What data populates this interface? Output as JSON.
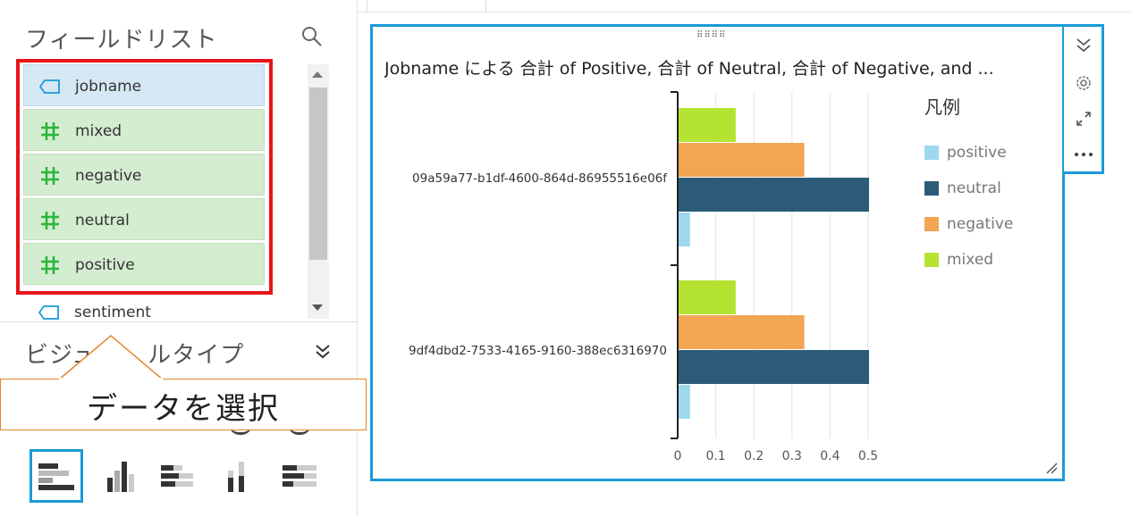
{
  "field_list": {
    "title": "フィールドリスト",
    "search_icon": "search-icon",
    "items": [
      {
        "label": "jobname",
        "kind": "dimension",
        "icon": "dimension-tag-icon"
      },
      {
        "label": "mixed",
        "kind": "measure",
        "icon": "hash-icon"
      },
      {
        "label": "negative",
        "kind": "measure",
        "icon": "hash-icon"
      },
      {
        "label": "neutral",
        "kind": "measure",
        "icon": "hash-icon"
      },
      {
        "label": "positive",
        "kind": "measure",
        "icon": "hash-icon"
      },
      {
        "label": "sentiment",
        "kind": "dimension",
        "icon": "dimension-tag-icon"
      }
    ]
  },
  "visual_types": {
    "title": "ビジュアルタイプ",
    "title_visible_left": "ビジュ",
    "title_visible_right": "ルタイプ",
    "icons": [
      "horizontal-bar-chart-icon",
      "vertical-bar-chart-icon",
      "horizontal-stacked-bar-icon",
      "vertical-stacked-bar-icon",
      "horizontal-100-stacked-bar-icon"
    ],
    "selected_index": 0
  },
  "callout": {
    "text": "データを選択"
  },
  "chart_card": {
    "title": "Jobname による 合計 of Positive, 合計 of Neutral, 合計 of Negative, and ...",
    "toolbar_icons": [
      "collapse-icon",
      "settings-icon",
      "expand-icon",
      "more-icon"
    ],
    "legend_title": "凡例"
  },
  "colors": {
    "accent": "#1a9ad8",
    "highlight": "#e8141a",
    "callout_border": "#e2862c",
    "dimension_bg": "#d5e8f3",
    "measure_bg": "#d4ecd0",
    "measure_icon": "#2db53c",
    "dimension_icon": "#1a9ad8"
  },
  "chart_data": {
    "type": "bar",
    "orientation": "horizontal",
    "categories": [
      "09a59a77-b1df-4600-864d-86955516e06f",
      "9df4dbd2-7533-4165-9160-388ec6316970"
    ],
    "series": [
      {
        "name": "positive",
        "color": "#9dd8ef",
        "values": [
          0.03,
          0.03
        ]
      },
      {
        "name": "neutral",
        "color": "#2b5b78",
        "values": [
          0.5,
          0.5
        ]
      },
      {
        "name": "negative",
        "color": "#f2a654",
        "values": [
          0.33,
          0.33
        ]
      },
      {
        "name": "mixed",
        "color": "#b5e332",
        "values": [
          0.15,
          0.15
        ]
      }
    ],
    "xlim": [
      0,
      0.5
    ],
    "xticks": [
      "0",
      "0.1",
      "0.2",
      "0.3",
      "0.4",
      "0.5"
    ],
    "legend": "right",
    "grid": true
  }
}
